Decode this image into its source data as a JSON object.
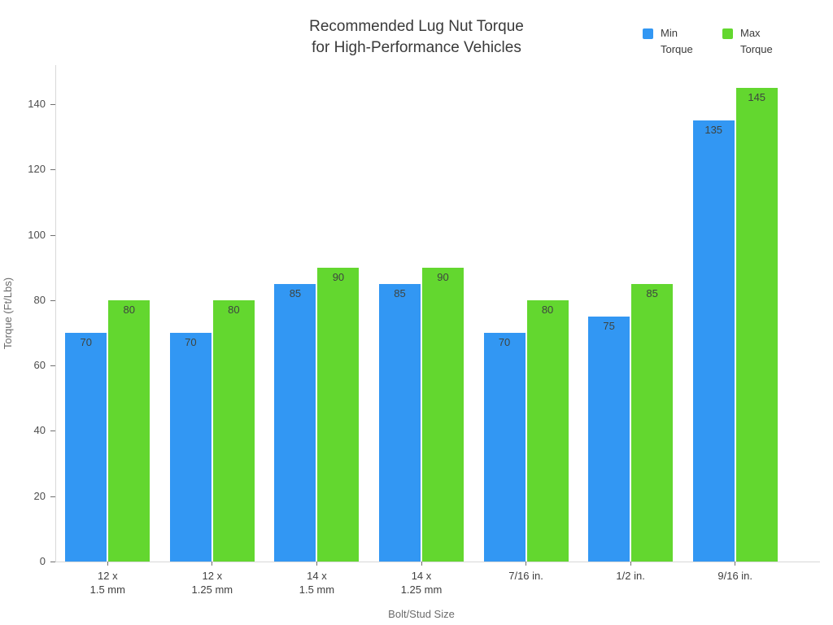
{
  "title": {
    "line1": "Recommended Lug Nut Torque",
    "line2": "for High-Performance Vehicles"
  },
  "legend": {
    "position": "top-right",
    "items": [
      {
        "label": "Min Torque"
      },
      {
        "label": "Max Torque"
      }
    ]
  },
  "chart_data": {
    "type": "bar",
    "title": "Recommended Lug Nut Torque for High-Performance Vehicles",
    "categories": [
      "12 x\n1.5 mm",
      "12 x\n1.25 mm",
      "14 x\n1.5 mm",
      "14 x\n1.25 mm",
      "7/16 in.",
      "1/2 in.",
      "9/16 in."
    ],
    "series": [
      {
        "name": "Min Torque",
        "color": "#3297f3",
        "values": [
          70,
          70,
          85,
          85,
          70,
          75,
          135
        ]
      },
      {
        "name": "Max Torque",
        "color": "#63d72f",
        "values": [
          80,
          80,
          90,
          90,
          80,
          85,
          145
        ]
      }
    ],
    "xlabel": "Bolt/Stud Size",
    "ylabel": "Torque (Ft/Lbs)",
    "ylim": [
      0,
      152
    ],
    "yticks": [
      0,
      20,
      40,
      60,
      80,
      100,
      120,
      140
    ],
    "grid": false,
    "value_labels": true,
    "legend_position": "top-right",
    "background_color": "#ffffff",
    "axis_line_color": "#d8d8d8"
  }
}
